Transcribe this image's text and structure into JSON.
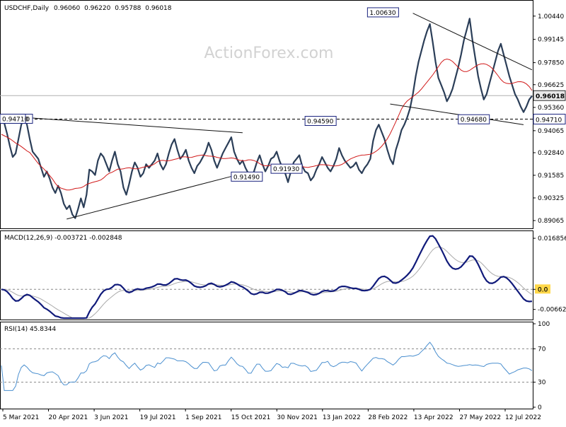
{
  "chart_data": {
    "type": "line",
    "symbol": "USDCHF",
    "timeframe": "Daily",
    "ohlc": [
      "0.96060",
      "0.96220",
      "0.95788",
      "0.96018"
    ],
    "watermark": "ActionForex.com",
    "price_panel": {
      "ylim": [
        0.8875,
        1.011
      ],
      "ticks": [
        "1.00440",
        "0.99145",
        "0.97850",
        "0.96625",
        "0.95360",
        "0.94065",
        "0.92840",
        "0.91585",
        "0.90325",
        "0.89065"
      ],
      "current_price": "0.96018",
      "support_level": "0.94710",
      "annotations": [
        "1.00630",
        "0.94590",
        "0.94680",
        "0.91490",
        "0.91930",
        "0.94710"
      ],
      "close_series": [
        0.947,
        0.945,
        0.939,
        0.932,
        0.926,
        0.928,
        0.936,
        0.944,
        0.948,
        0.944,
        0.936,
        0.929,
        0.927,
        0.925,
        0.92,
        0.915,
        0.918,
        0.914,
        0.909,
        0.906,
        0.91,
        0.906,
        0.9,
        0.897,
        0.899,
        0.894,
        0.892,
        0.897,
        0.903,
        0.898,
        0.905,
        0.919,
        0.918,
        0.916,
        0.924,
        0.928,
        0.926,
        0.922,
        0.918,
        0.924,
        0.929,
        0.922,
        0.918,
        0.909,
        0.905,
        0.911,
        0.918,
        0.923,
        0.92,
        0.915,
        0.917,
        0.922,
        0.92,
        0.922,
        0.924,
        0.928,
        0.922,
        0.919,
        0.922,
        0.928,
        0.933,
        0.936,
        0.93,
        0.925,
        0.927,
        0.93,
        0.924,
        0.92,
        0.917,
        0.921,
        0.923,
        0.926,
        0.929,
        0.934,
        0.93,
        0.924,
        0.92,
        0.924,
        0.928,
        0.931,
        0.934,
        0.937,
        0.929,
        0.925,
        0.922,
        0.924,
        0.92,
        0.917,
        0.913,
        0.918,
        0.923,
        0.927,
        0.922,
        0.918,
        0.921,
        0.925,
        0.926,
        0.929,
        0.924,
        0.92,
        0.917,
        0.912,
        0.918,
        0.923,
        0.925,
        0.927,
        0.921,
        0.918,
        0.917,
        0.913,
        0.915,
        0.919,
        0.922,
        0.926,
        0.923,
        0.92,
        0.918,
        0.921,
        0.925,
        0.931,
        0.927,
        0.924,
        0.922,
        0.92,
        0.921,
        0.923,
        0.919,
        0.917,
        0.92,
        0.922,
        0.925,
        0.935,
        0.941,
        0.944,
        0.94,
        0.936,
        0.93,
        0.925,
        0.922,
        0.93,
        0.935,
        0.941,
        0.944,
        0.948,
        0.953,
        0.961,
        0.971,
        0.979,
        0.985,
        0.991,
        0.996,
        1.0,
        0.99,
        0.979,
        0.97,
        0.966,
        0.962,
        0.957,
        0.96,
        0.964,
        0.97,
        0.976,
        0.983,
        0.991,
        0.997,
        1.003,
        0.991,
        0.981,
        0.971,
        0.964,
        0.958,
        0.961,
        0.967,
        0.973,
        0.979,
        0.985,
        0.989,
        0.983,
        0.977,
        0.971,
        0.966,
        0.961,
        0.958,
        0.954,
        0.951,
        0.954,
        0.958,
        0.96
      ]
    },
    "macd_panel": {
      "label": "MACD(12,26,9) -0.003721 -0.002848",
      "ylim": [
        -0.0095,
        0.0185
      ],
      "ticks": [
        "0.016856",
        "0.0",
        "-0.006629"
      ],
      "highlight": "0.0"
    },
    "rsi_panel": {
      "label": "RSI(14) 45.8344",
      "ylim": [
        0,
        100
      ],
      "ticks": [
        "100",
        "70",
        "30",
        "0"
      ],
      "levels": [
        70,
        30
      ]
    },
    "x_labels": [
      "5 Mar 2021",
      "20 Apr 2021",
      "3 Jun 2021",
      "19 Jul 2021",
      "1 Sep 2021",
      "15 Oct 2021",
      "30 Nov 2021",
      "13 Jan 2022",
      "28 Feb 2022",
      "13 Apr 2022",
      "27 May 2022",
      "12 Jul 2022"
    ],
    "colors": {
      "price": "#2b3e58",
      "ma": "#d11a1a",
      "macd": "#101a7a",
      "signal": "#a9a9a9",
      "rsi": "#4a8fcf",
      "trend": "#111111",
      "label_border": "#1a237e",
      "current_badge": "#e8e8e8"
    }
  }
}
